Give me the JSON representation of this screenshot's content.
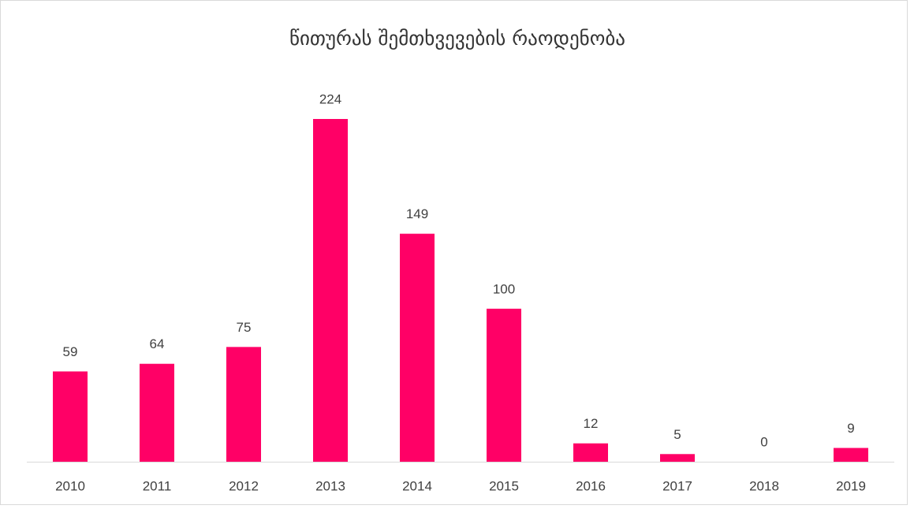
{
  "chart_data": {
    "type": "bar",
    "title": "წითურას შემთხვევების რაოდენობა",
    "categories": [
      "2010",
      "2011",
      "2012",
      "2013",
      "2014",
      "2015",
      "2016",
      "2017",
      "2018",
      "2019"
    ],
    "values": [
      59,
      64,
      75,
      224,
      149,
      100,
      12,
      5,
      0,
      9
    ],
    "color": "#ff0066"
  }
}
